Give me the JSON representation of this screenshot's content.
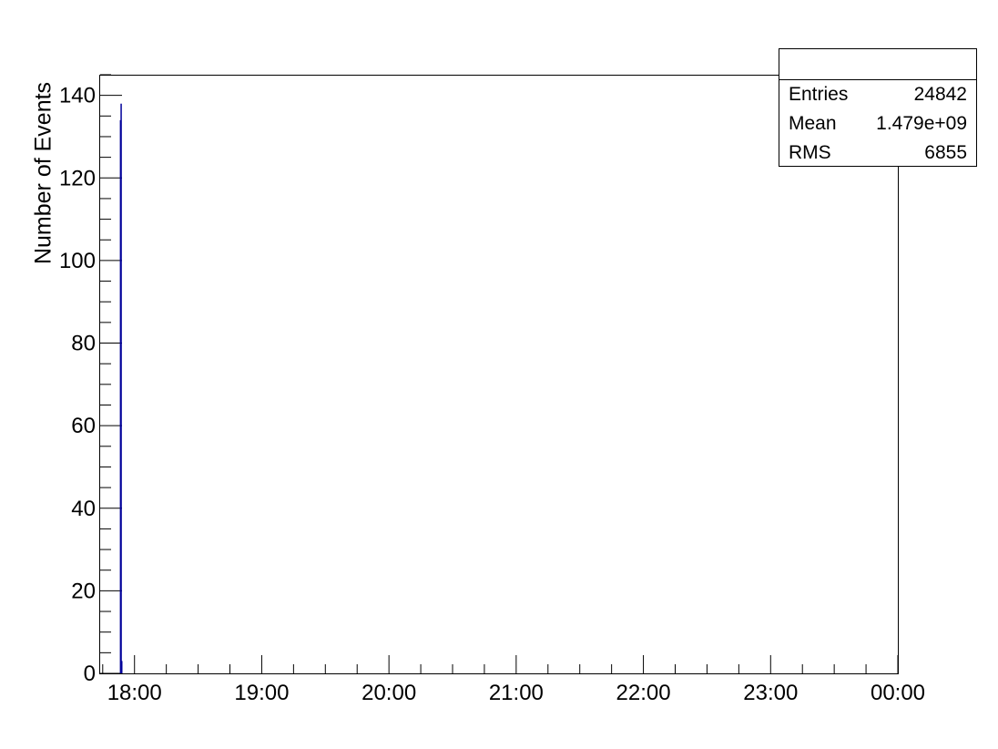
{
  "chart_data": {
    "type": "bar",
    "title": "",
    "xlabel": "",
    "ylabel": "Number of Events",
    "x_tick_labels": [
      "18:00",
      "19:00",
      "20:00",
      "21:00",
      "22:00",
      "23:00",
      "00:00"
    ],
    "y_tick_labels": [
      "0",
      "20",
      "40",
      "60",
      "80",
      "100",
      "120",
      "140"
    ],
    "ylim": [
      0,
      145
    ],
    "xlim_hours": [
      17.73,
      24.0
    ],
    "series": [
      {
        "color": "#000099",
        "bins": [
          {
            "x_hour": 17.89,
            "value": 134
          },
          {
            "x_hour": 17.895,
            "value": 138
          },
          {
            "x_hour": 17.9,
            "value": 3
          }
        ]
      }
    ],
    "grid": false,
    "legend": "none"
  },
  "stats": {
    "entries_label": "Entries",
    "entries_value": "24842",
    "mean_label": "Mean",
    "mean_value": "1.479e+09",
    "rms_label": "RMS",
    "rms_value": "6855"
  }
}
